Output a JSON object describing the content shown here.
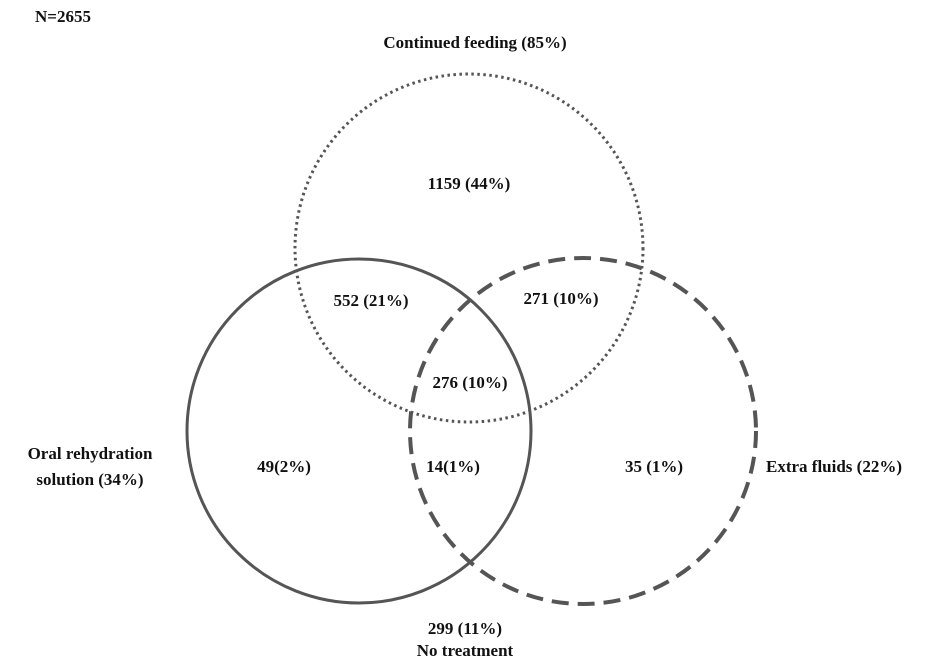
{
  "sample_size": "N=2655",
  "sets": {
    "feeding": {
      "label": "Continued feeding (85%)",
      "line_style": "dotted"
    },
    "ors": {
      "label_line1": "Oral rehydration",
      "label_line2": "solution (34%)",
      "line_style": "solid"
    },
    "fluids": {
      "label": "Extra fluids (22%)",
      "line_style": "dashed"
    }
  },
  "regions": {
    "feeding_only": "1159 (44%)",
    "feeding_ors": "552 (21%)",
    "feeding_fluids": "271 (10%)",
    "all_three": "276 (10%)",
    "ors_only": "49(2%)",
    "ors_fluids": "14(1%)",
    "fluids_only": "35 (1%)"
  },
  "no_treatment": {
    "count": "299 (11%)",
    "label": "No treatment"
  },
  "colors": {
    "stroke": "#555555",
    "text": "#111111"
  }
}
